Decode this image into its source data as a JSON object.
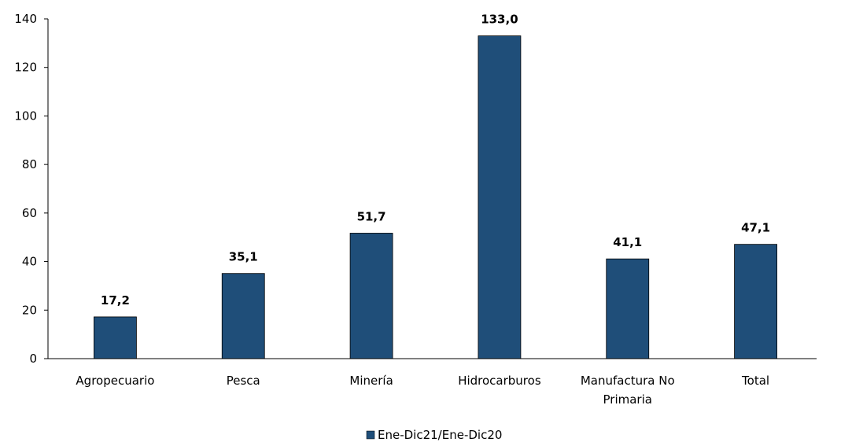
{
  "chart_data": {
    "type": "bar",
    "categories": [
      "Agropecuario",
      "Pesca",
      "Minería",
      "Hidrocarburos",
      "Manufactura No Primaria",
      "Total"
    ],
    "category_lines": [
      [
        "Agropecuario"
      ],
      [
        "Pesca"
      ],
      [
        "Minería"
      ],
      [
        "Hidrocarburos"
      ],
      [
        "Manufactura No",
        "Primaria"
      ],
      [
        "Total"
      ]
    ],
    "series": [
      {
        "name": "Ene-Dic21/Ene-Dic20",
        "values": [
          17.2,
          35.1,
          51.7,
          133.0,
          41.1,
          47.1
        ],
        "labels": [
          "17,2",
          "35,1",
          "51,7",
          "133,0",
          "41,1",
          "47,1"
        ],
        "color": "#1F4E79"
      }
    ],
    "yticks": [
      0,
      20,
      40,
      60,
      80,
      100,
      120,
      140
    ],
    "ylim": [
      0,
      140
    ],
    "grid": false,
    "legend_position": "bottom-center"
  }
}
